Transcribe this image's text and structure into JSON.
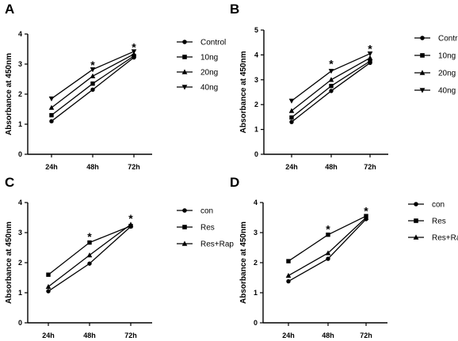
{
  "chart_data": [
    {
      "type": "line",
      "panel": "A",
      "ylabel": "Absorbance at 450nm",
      "xlabel": "",
      "categories": [
        "24h",
        "48h",
        "72h"
      ],
      "ylim": [
        0,
        4
      ],
      "yticks": [
        "0",
        "1",
        "2",
        "3",
        "4"
      ],
      "series": [
        {
          "name": "Control",
          "marker": "circle",
          "values": [
            1.1,
            2.15,
            3.22
          ]
        },
        {
          "name": "10ng",
          "marker": "square",
          "values": [
            1.3,
            2.35,
            3.27
          ]
        },
        {
          "name": "20ng",
          "marker": "triangle-up",
          "values": [
            1.55,
            2.6,
            3.33
          ]
        },
        {
          "name": "40ng",
          "marker": "triangle-down",
          "values": [
            1.85,
            2.82,
            3.42
          ]
        }
      ],
      "annotations": [
        {
          "category": "48h",
          "text": "*",
          "y": 3.05
        },
        {
          "category": "72h",
          "text": "*",
          "y": 3.65
        }
      ],
      "legend_position": "right"
    },
    {
      "type": "line",
      "panel": "B",
      "ylabel": "Absorbance at 450nm",
      "xlabel": "",
      "categories": [
        "24h",
        "48h",
        "72h"
      ],
      "ylim": [
        0,
        5
      ],
      "yticks": [
        "0",
        "1",
        "2",
        "3",
        "4",
        "5"
      ],
      "series": [
        {
          "name": "Control",
          "marker": "circle",
          "values": [
            1.3,
            2.55,
            3.68
          ]
        },
        {
          "name": "10ng",
          "marker": "square",
          "values": [
            1.48,
            2.75,
            3.75
          ]
        },
        {
          "name": "20ng",
          "marker": "triangle-up",
          "values": [
            1.75,
            3.0,
            3.88
          ]
        },
        {
          "name": "40ng",
          "marker": "triangle-down",
          "values": [
            2.15,
            3.35,
            4.05
          ]
        }
      ],
      "annotations": [
        {
          "category": "48h",
          "text": "*",
          "y": 3.75
        },
        {
          "category": "72h",
          "text": "*",
          "y": 4.35
        }
      ],
      "legend_position": "right"
    },
    {
      "type": "line",
      "panel": "C",
      "ylabel": "Absorbance at 450nm",
      "xlabel": "",
      "categories": [
        "24h",
        "48h",
        "72h"
      ],
      "ylim": [
        0,
        4
      ],
      "yticks": [
        "0",
        "1",
        "2",
        "3",
        "4"
      ],
      "series": [
        {
          "name": "con",
          "marker": "circle",
          "values": [
            1.05,
            1.97,
            3.2
          ]
        },
        {
          "name": "Res",
          "marker": "square",
          "values": [
            1.6,
            2.67,
            3.22
          ]
        },
        {
          "name": "Res+Rap",
          "marker": "triangle-up",
          "values": [
            1.2,
            2.25,
            3.27
          ]
        }
      ],
      "annotations": [
        {
          "category": "48h",
          "text": "*",
          "y": 2.95
        },
        {
          "category": "72h",
          "text": "*",
          "y": 3.55
        }
      ],
      "legend_position": "right"
    },
    {
      "type": "line",
      "panel": "D",
      "ylabel": "Absorbance at 450nm",
      "xlabel": "",
      "categories": [
        "24h",
        "48h",
        "72h"
      ],
      "ylim": [
        0,
        4
      ],
      "yticks": [
        "0",
        "1",
        "2",
        "3",
        "4"
      ],
      "series": [
        {
          "name": "con",
          "marker": "circle",
          "values": [
            1.38,
            2.13,
            3.45
          ]
        },
        {
          "name": "Res",
          "marker": "square",
          "values": [
            2.05,
            2.93,
            3.55
          ]
        },
        {
          "name": "Res+Rap",
          "marker": "triangle-up",
          "values": [
            1.57,
            2.32,
            3.5
          ]
        }
      ],
      "annotations": [
        {
          "category": "48h",
          "text": "*",
          "y": 3.2
        },
        {
          "category": "72h",
          "text": "*",
          "y": 3.8
        }
      ],
      "legend_position": "right"
    }
  ],
  "style": {
    "line_color": "#000000",
    "marker_color": "#000000",
    "background": "#ffffff"
  }
}
